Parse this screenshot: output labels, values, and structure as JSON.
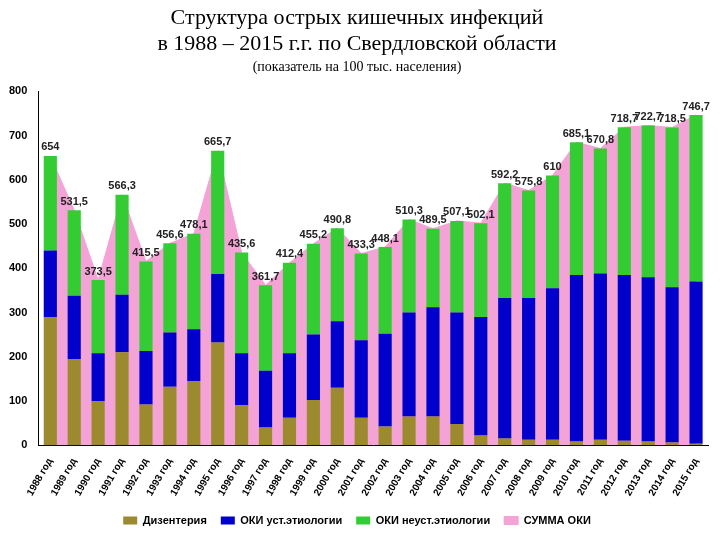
{
  "chart_data": {
    "type": "bar",
    "title": "Структура острых кишечных инфекций\nв 1988 – 2015 г.г. по Свердловской области",
    "subtitle": "(показатель на 100 тыс. населения)",
    "categories": [
      "1988 год",
      "1989 год",
      "1990 год",
      "1991 год",
      "1992 год",
      "1993 год",
      "1994 год",
      "1995 год",
      "1996 год",
      "1997 год",
      "1998 год",
      "1999 год",
      "2000 год",
      "2001 год",
      "2002 год",
      "2003 год",
      "2004 год",
      "2005 год",
      "2006 год",
      "2007 год",
      "2008 год",
      "2009 год",
      "2010 год",
      "2011 год",
      "2012 год",
      "2013 год",
      "2014 год",
      "2015 год"
    ],
    "stacked": true,
    "grid": false,
    "legend": "bottom",
    "ylim": [
      0,
      800
    ],
    "yticks": [
      0,
      100,
      200,
      300,
      400,
      500,
      600,
      700,
      800
    ],
    "series": [
      {
        "name": "СУММА ОКИ",
        "type": "area",
        "color": "#f4a3d6",
        "data_labels": true,
        "values": [
          654,
          531.5,
          373.5,
          566.3,
          415.5,
          456.6,
          478.1,
          665.7,
          435.6,
          361.7,
          412.4,
          455.2,
          490.8,
          433.3,
          448.1,
          510.3,
          489.5,
          507.1,
          502.1,
          592.2,
          575.8,
          610,
          685.1,
          670.8,
          718.7,
          722.7,
          718.5,
          746.7
        ],
        "value_labels": [
          "654",
          "531,5",
          "373,5",
          "566,3",
          "415,5",
          "456,6",
          "478,1",
          "665,7",
          "435,6",
          "361,7",
          "412,4",
          "455,2",
          "490,8",
          "433,3",
          "448,1",
          "510,3",
          "489,5",
          "507,1",
          "502,1",
          "592,2",
          "575,8",
          "610",
          "685,1",
          "670,8",
          "718,7",
          "722,7",
          "718,5",
          "746,7"
        ]
      },
      {
        "name": "Дизентерия",
        "type": "bar",
        "color": "#9c8a2e",
        "values": [
          290,
          195,
          100,
          210,
          92,
          132,
          145,
          232,
          90,
          40,
          62,
          102,
          130,
          62,
          42,
          65,
          65,
          48,
          22,
          15,
          12,
          12,
          8,
          12,
          10,
          8,
          6,
          3
        ]
      },
      {
        "name": "ОКИ уст.этиологии",
        "type": "bar",
        "color": "#0000cc",
        "values": [
          150,
          143,
          108,
          130,
          121,
          123,
          117,
          155,
          118,
          128,
          146,
          148,
          150,
          175,
          210,
          235,
          247,
          252,
          268,
          318,
          321,
          343,
          377,
          376,
          375,
          372,
          351,
          367
        ]
      },
      {
        "name": "ОКИ неуст.этиологии",
        "type": "bar",
        "color": "#33cc33",
        "values": [
          214,
          193.5,
          165.5,
          226.3,
          202.5,
          201.6,
          216.1,
          278.7,
          227.6,
          193.7,
          204.4,
          205.2,
          210.8,
          196.3,
          196.1,
          210.3,
          177.5,
          207.1,
          212.1,
          259.2,
          242.8,
          255,
          300.1,
          282.8,
          333.7,
          342.7,
          361.5,
          376.7
        ]
      }
    ]
  }
}
